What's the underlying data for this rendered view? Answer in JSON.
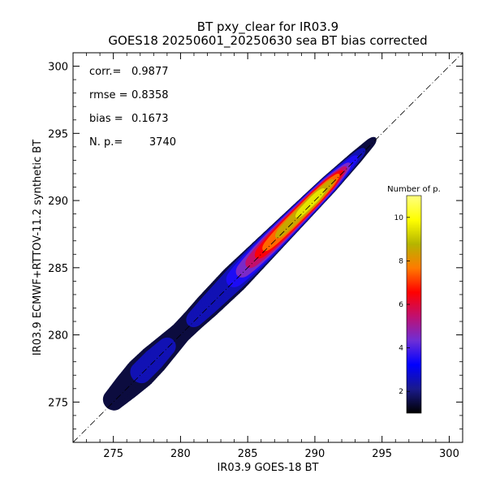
{
  "chart_data": {
    "type": "heatmap",
    "title": "BT pxy_clear for IR03.9",
    "subtitle": "GOES18 20250601_20250630 sea BT bias corrected",
    "xlabel": "IR03.9 GOES-18 BT",
    "ylabel": "IR03.9 ECMWF+RTTOV-11.2 synthetic BT",
    "xlim": [
      272,
      301
    ],
    "ylim": [
      272,
      301
    ],
    "xticks": [
      "275",
      "280",
      "285",
      "290",
      "295",
      "300"
    ],
    "yticks": [
      "275",
      "280",
      "285",
      "290",
      "295",
      "300"
    ],
    "xtick_values": [
      275,
      280,
      285,
      290,
      295,
      300
    ],
    "ytick_values": [
      275,
      280,
      285,
      290,
      295,
      300
    ],
    "grid": false,
    "reference_line": "y = x (dash-dot)",
    "stats": [
      {
        "label": "corr.=",
        "value": "0.9877"
      },
      {
        "label": "rmse =",
        "value": "0.8358"
      },
      {
        "label": "bias =",
        "value": "0.1673"
      },
      {
        "label": "N. p.=",
        "value": "3740"
      }
    ],
    "colorbar": {
      "title": "Number of p.",
      "ticks": [
        "2",
        "4",
        "6",
        "8",
        "10"
      ],
      "tick_values": [
        2,
        4,
        6,
        8,
        10
      ],
      "range": [
        1,
        11
      ],
      "colors": [
        "#000000",
        "#1a1a8c",
        "#0000ff",
        "#6e2ed6",
        "#c01070",
        "#ff0000",
        "#ff7a00",
        "#b5b500",
        "#ffff00",
        "#ffff80"
      ]
    },
    "density_ridge": [
      {
        "x": 275.0,
        "width": 1.6,
        "level": 1.5
      },
      {
        "x": 276.0,
        "width": 2.0,
        "level": 1.8
      },
      {
        "x": 277.0,
        "width": 2.3,
        "level": 2.0
      },
      {
        "x": 278.0,
        "width": 2.2,
        "level": 2.2
      },
      {
        "x": 279.0,
        "width": 1.9,
        "level": 2.0
      },
      {
        "x": 280.0,
        "width": 1.6,
        "level": 1.8
      },
      {
        "x": 281.0,
        "width": 1.7,
        "level": 2.0
      },
      {
        "x": 282.0,
        "width": 1.9,
        "level": 2.3
      },
      {
        "x": 283.0,
        "width": 2.0,
        "level": 2.6
      },
      {
        "x": 284.0,
        "width": 2.1,
        "level": 3.0
      },
      {
        "x": 285.0,
        "width": 2.0,
        "level": 4.5
      },
      {
        "x": 286.0,
        "width": 1.9,
        "level": 6.0
      },
      {
        "x": 287.0,
        "width": 1.8,
        "level": 7.5
      },
      {
        "x": 288.0,
        "width": 1.7,
        "level": 8.5
      },
      {
        "x": 289.0,
        "width": 1.6,
        "level": 9.0
      },
      {
        "x": 290.0,
        "width": 1.5,
        "level": 9.5
      },
      {
        "x": 291.0,
        "width": 1.4,
        "level": 8.0
      },
      {
        "x": 292.0,
        "width": 1.2,
        "level": 4.5
      },
      {
        "x": 293.0,
        "width": 1.0,
        "level": 2.2
      },
      {
        "x": 294.0,
        "width": 0.7,
        "level": 1.3
      }
    ]
  }
}
